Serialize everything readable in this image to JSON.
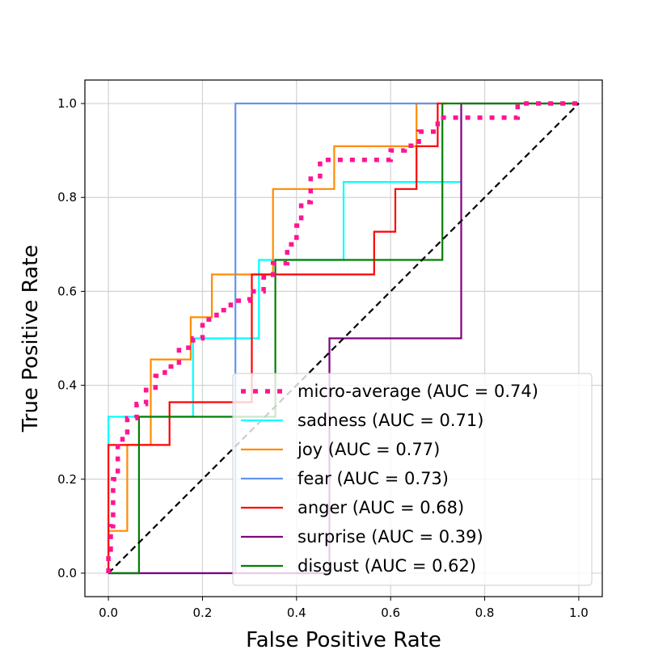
{
  "chart_data": {
    "type": "line",
    "title": "",
    "xlabel": "False Positive Rate",
    "ylabel": "True Positive Rate",
    "xlim": [
      -0.05,
      1.05
    ],
    "ylim": [
      -0.05,
      1.05
    ],
    "xticks": [
      0.0,
      0.2,
      0.4,
      0.6,
      0.8,
      1.0
    ],
    "yticks": [
      0.0,
      0.2,
      0.4,
      0.6,
      0.8,
      1.0
    ],
    "xtick_labels": [
      "0.0",
      "0.2",
      "0.4",
      "0.6",
      "0.8",
      "1.0"
    ],
    "ytick_labels": [
      "0.0",
      "0.2",
      "0.4",
      "0.6",
      "0.8",
      "1.0"
    ],
    "grid": true,
    "legend_position": "bottom-right",
    "series": [
      {
        "name": "micro-average",
        "label": "micro-average (AUC = 0.74)",
        "color": "#ff1493",
        "style": "dotted",
        "x": [
          0.0,
          0.0,
          0.005,
          0.005,
          0.01,
          0.01,
          0.02,
          0.02,
          0.03,
          0.03,
          0.04,
          0.04,
          0.06,
          0.06,
          0.08,
          0.08,
          0.1,
          0.1,
          0.12,
          0.12,
          0.15,
          0.15,
          0.18,
          0.18,
          0.2,
          0.2,
          0.23,
          0.23,
          0.26,
          0.26,
          0.3,
          0.3,
          0.33,
          0.33,
          0.35,
          0.35,
          0.38,
          0.38,
          0.4,
          0.4,
          0.41,
          0.41,
          0.43,
          0.43,
          0.45,
          0.45,
          0.5,
          0.5,
          0.55,
          0.55,
          0.6,
          0.6,
          0.63,
          0.63,
          0.66,
          0.66,
          0.7,
          0.7,
          0.72,
          0.72,
          0.77,
          0.77,
          0.87,
          0.87,
          0.9,
          1.0
        ],
        "y": [
          0.0,
          0.05,
          0.05,
          0.1,
          0.1,
          0.2,
          0.2,
          0.27,
          0.27,
          0.3,
          0.3,
          0.33,
          0.33,
          0.36,
          0.36,
          0.39,
          0.39,
          0.42,
          0.42,
          0.44,
          0.44,
          0.48,
          0.48,
          0.5,
          0.5,
          0.54,
          0.54,
          0.56,
          0.56,
          0.58,
          0.58,
          0.6,
          0.6,
          0.63,
          0.63,
          0.66,
          0.66,
          0.7,
          0.7,
          0.74,
          0.74,
          0.79,
          0.79,
          0.84,
          0.84,
          0.88,
          0.88,
          0.88,
          0.88,
          0.88,
          0.88,
          0.9,
          0.9,
          0.91,
          0.91,
          0.94,
          0.94,
          0.97,
          0.97,
          0.97,
          0.97,
          0.97,
          0.97,
          1.0,
          1.0,
          1.0
        ]
      },
      {
        "name": "sadness",
        "label": "sadness (AUC = 0.71)",
        "color": "#00ffff",
        "style": "solid",
        "x": [
          0.0,
          0.0,
          0.0,
          0.18,
          0.18,
          0.32,
          0.32,
          0.35,
          0.35,
          0.5,
          0.5,
          0.75
        ],
        "y": [
          0.0,
          0.28,
          0.333,
          0.333,
          0.5,
          0.5,
          0.667,
          0.667,
          0.667,
          0.667,
          0.833,
          0.833
        ]
      },
      {
        "name": "joy",
        "label": "joy (AUC = 0.77)",
        "color": "#ff8c00",
        "style": "solid",
        "x": [
          0.0,
          0.0,
          0.04,
          0.04,
          0.09,
          0.09,
          0.175,
          0.175,
          0.22,
          0.22,
          0.35,
          0.35,
          0.48,
          0.48,
          0.655,
          0.655,
          0.7
        ],
        "y": [
          0.0,
          0.09,
          0.09,
          0.273,
          0.273,
          0.455,
          0.455,
          0.545,
          0.545,
          0.636,
          0.636,
          0.818,
          0.818,
          0.909,
          0.909,
          1.0,
          1.0
        ]
      },
      {
        "name": "fear",
        "label": "fear (AUC = 0.73)",
        "color": "#6495ed",
        "style": "solid",
        "x": [
          0.0,
          0.27,
          0.27,
          0.7
        ],
        "y": [
          0.0,
          0.0,
          1.0,
          1.0
        ]
      },
      {
        "name": "anger",
        "label": "anger (AUC = 0.68)",
        "color": "#ff0000",
        "style": "solid",
        "x": [
          0.0,
          0.0,
          0.13,
          0.13,
          0.305,
          0.305,
          0.565,
          0.565,
          0.61,
          0.61,
          0.655,
          0.655,
          0.7,
          0.7,
          0.72
        ],
        "y": [
          0.0,
          0.273,
          0.273,
          0.364,
          0.364,
          0.636,
          0.636,
          0.727,
          0.727,
          0.818,
          0.818,
          0.909,
          0.909,
          1.0,
          1.0
        ]
      },
      {
        "name": "surprise",
        "label": "surprise (AUC = 0.39)",
        "color": "#800080",
        "style": "solid",
        "x": [
          0.0,
          0.47,
          0.47,
          0.75,
          0.75,
          1.0
        ],
        "y": [
          0.0,
          0.0,
          0.5,
          0.5,
          1.0,
          1.0
        ]
      },
      {
        "name": "disgust",
        "label": "disgust (AUC = 0.62)",
        "color": "#008000",
        "style": "solid",
        "x": [
          0.0,
          0.065,
          0.065,
          0.355,
          0.355,
          0.71,
          0.71,
          1.0
        ],
        "y": [
          0.0,
          0.0,
          0.333,
          0.333,
          0.667,
          0.667,
          1.0,
          1.0
        ]
      },
      {
        "name": "chance",
        "label": "",
        "color": "#000000",
        "style": "dashed",
        "x": [
          0.0,
          1.0
        ],
        "y": [
          0.0,
          1.0
        ]
      }
    ]
  }
}
